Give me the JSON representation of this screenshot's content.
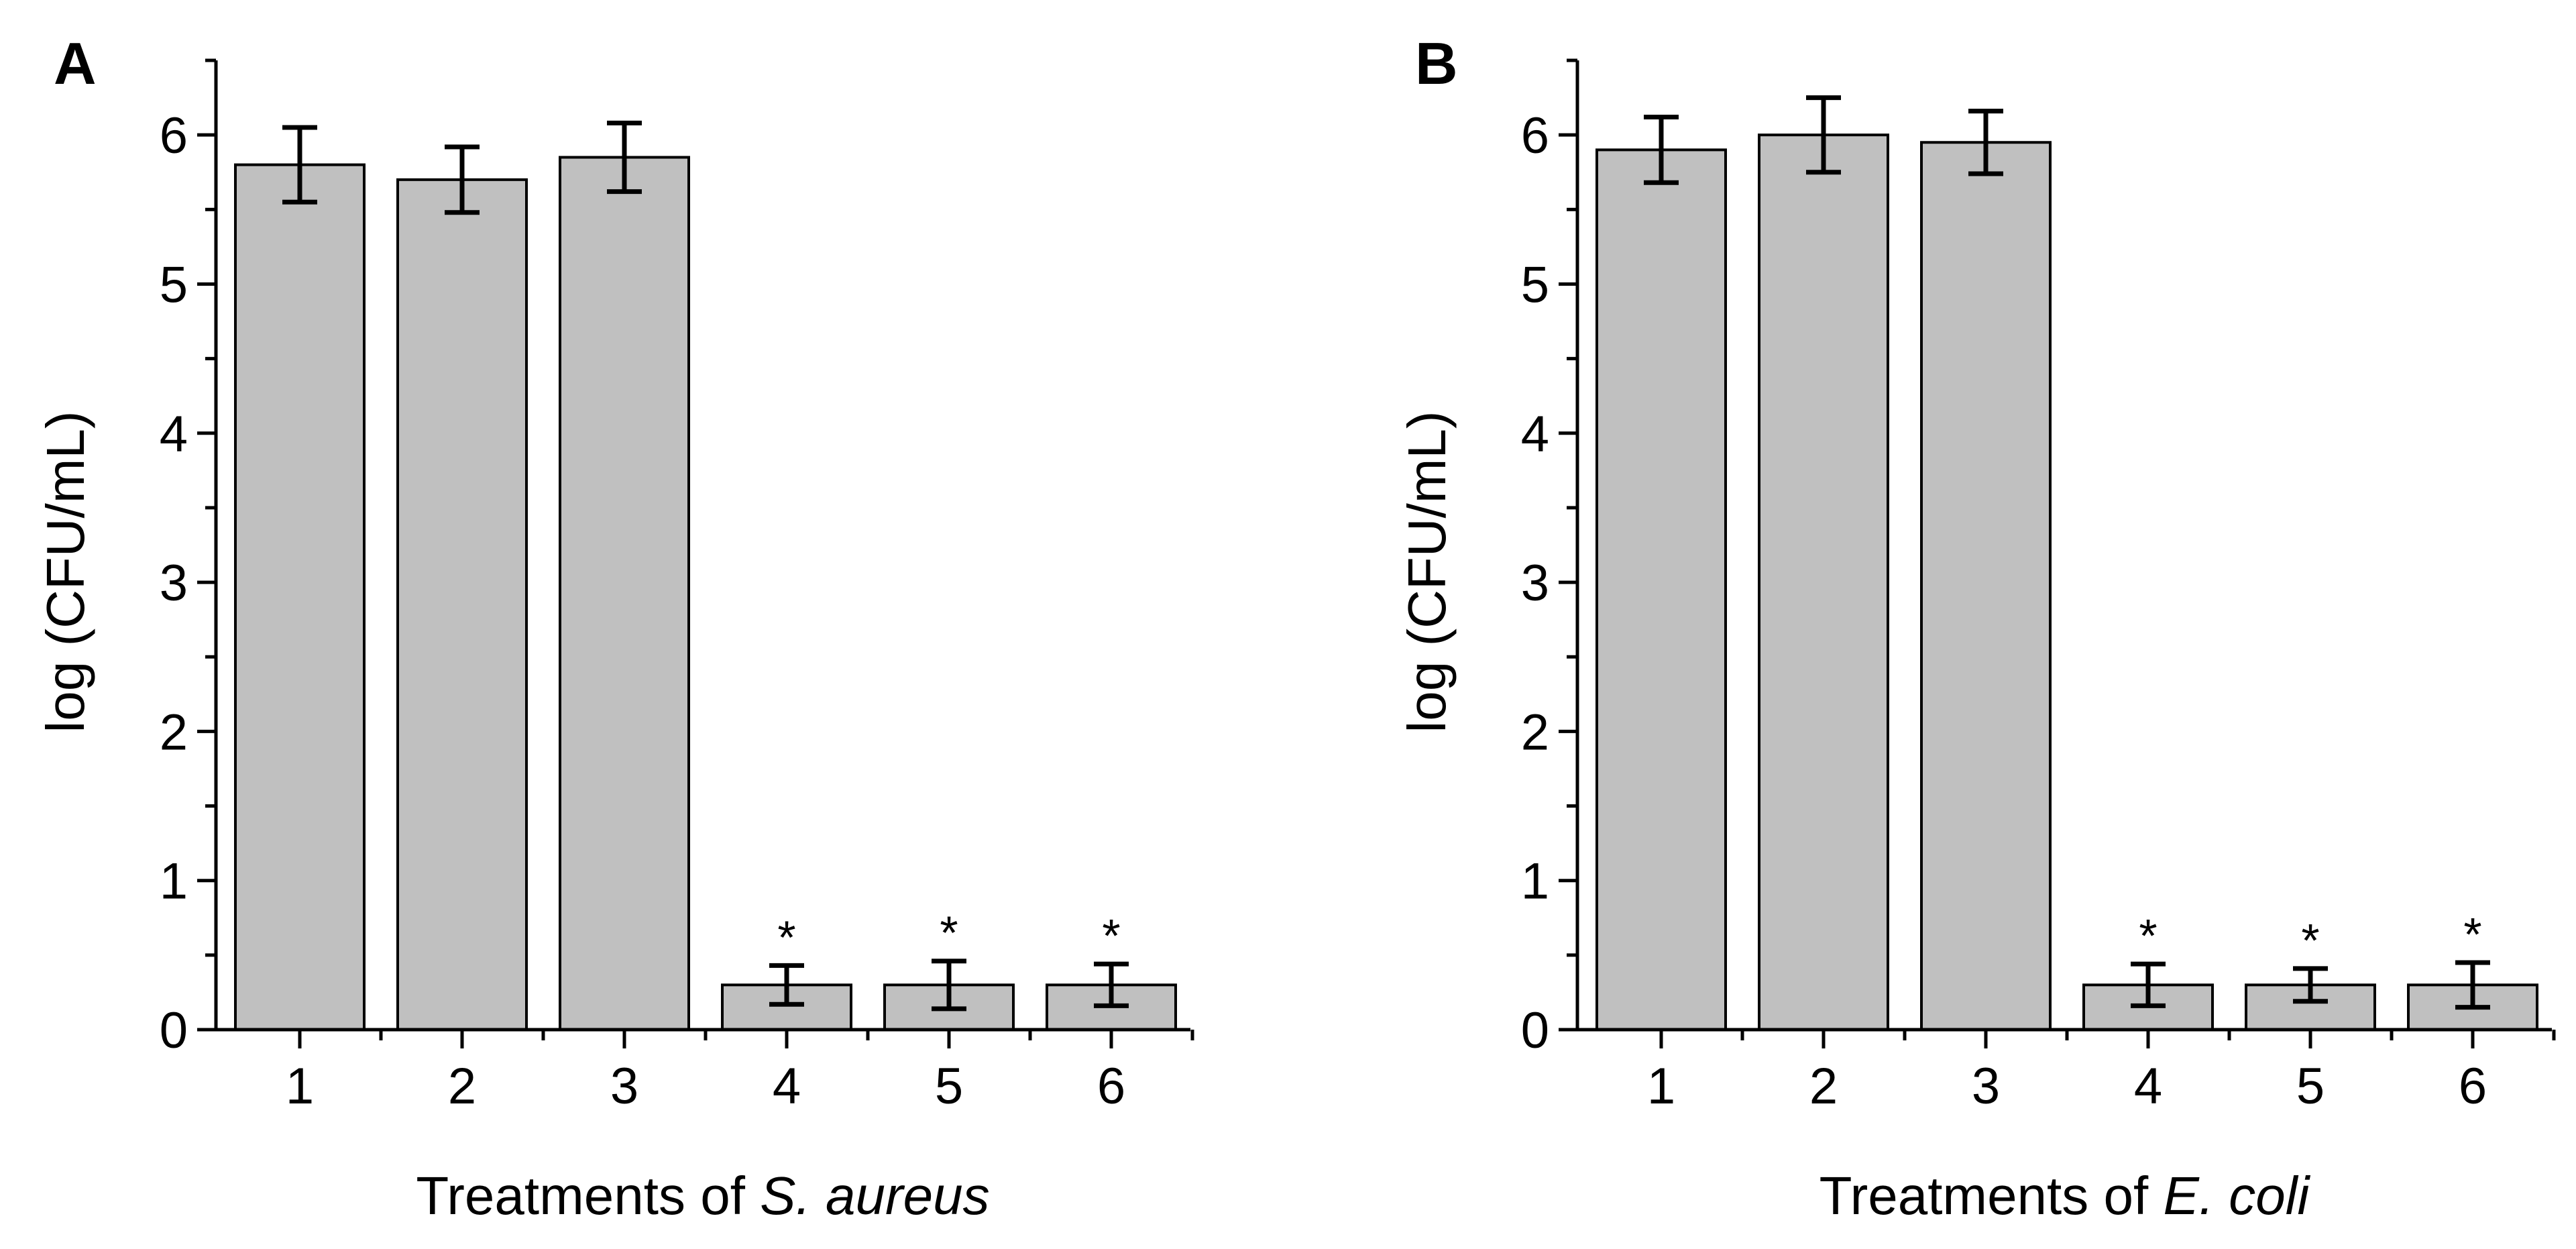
{
  "chart_data": [
    {
      "type": "bar",
      "panel": "A",
      "categories": [
        "1",
        "2",
        "3",
        "4",
        "5",
        "6"
      ],
      "values": [
        5.8,
        5.7,
        5.85,
        0.3,
        0.3,
        0.3
      ],
      "errors": [
        0.25,
        0.22,
        0.23,
        0.13,
        0.16,
        0.14
      ],
      "annotations": [
        "",
        "",
        "",
        "*",
        "*",
        "*"
      ],
      "xlabel_prefix": "Treatments of ",
      "xlabel_italic": "S. aureus",
      "ylabel": "log (CFU/mL)",
      "ylim": [
        0,
        6.5
      ],
      "yticks": [
        0,
        1,
        2,
        3,
        4,
        5,
        6
      ],
      "bar_color": "#c0c0c0",
      "grid": false
    },
    {
      "type": "bar",
      "panel": "B",
      "categories": [
        "1",
        "2",
        "3",
        "4",
        "5",
        "6"
      ],
      "values": [
        5.9,
        6.0,
        5.95,
        0.3,
        0.3,
        0.3
      ],
      "errors": [
        0.22,
        0.25,
        0.21,
        0.14,
        0.11,
        0.15
      ],
      "annotations": [
        "",
        "",
        "",
        "*",
        "*",
        "*"
      ],
      "xlabel_prefix": "Treatments of ",
      "xlabel_italic": "E. coli",
      "ylabel": "log (CFU/mL)",
      "ylim": [
        0,
        6.5
      ],
      "yticks": [
        0,
        1,
        2,
        3,
        4,
        5,
        6
      ],
      "bar_color": "#c0c0c0",
      "grid": false
    }
  ]
}
